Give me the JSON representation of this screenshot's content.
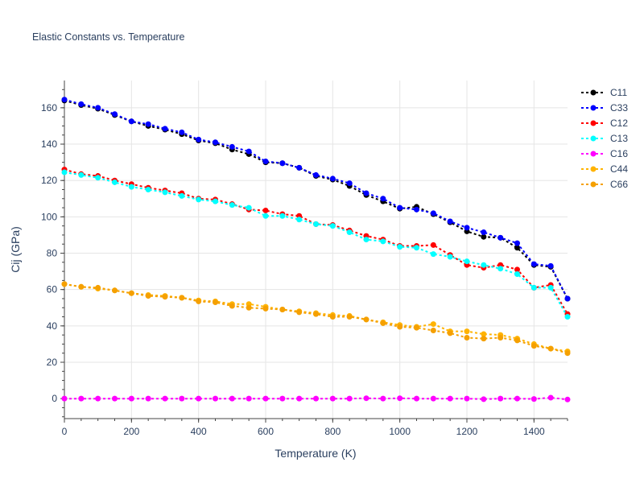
{
  "chart_data": {
    "type": "line",
    "title": "Elastic Constants vs. Temperature",
    "xlabel": "Temperature (K)",
    "ylabel": "Cij (GPa)",
    "xlim": [
      0,
      1500
    ],
    "ylim": [
      -11,
      175
    ],
    "xticks": [
      0,
      200,
      400,
      600,
      800,
      1000,
      1200,
      1400
    ],
    "yticks": [
      0,
      20,
      40,
      60,
      80,
      100,
      120,
      140,
      160
    ],
    "grid": true,
    "legend_position": "top-right",
    "x": [
      0,
      50,
      100,
      150,
      200,
      250,
      300,
      350,
      400,
      450,
      500,
      550,
      600,
      650,
      700,
      750,
      800,
      850,
      900,
      950,
      1000,
      1050,
      1100,
      1150,
      1200,
      1250,
      1300,
      1350,
      1400,
      1450,
      1500
    ],
    "series": [
      {
        "name": "C11",
        "color": "#000000",
        "values": [
          164,
          161.5,
          159.5,
          156,
          152.5,
          150,
          148,
          145.5,
          142,
          140.5,
          137,
          134.5,
          130,
          129.5,
          127,
          122.5,
          120.5,
          117,
          112,
          108.5,
          104.5,
          105.5,
          101.5,
          97,
          92,
          89,
          88.5,
          83,
          73.5,
          72.5,
          55
        ]
      },
      {
        "name": "C33",
        "color": "#0000ff",
        "values": [
          164.5,
          162,
          160,
          156.5,
          152.5,
          151,
          148.5,
          146.5,
          142.5,
          141,
          138.5,
          136,
          130.5,
          129.5,
          127,
          123,
          121,
          118.5,
          113,
          110,
          105,
          104,
          102,
          97.5,
          94,
          91.5,
          88.5,
          85.5,
          74,
          73,
          55
        ]
      },
      {
        "name": "C12",
        "color": "#ff0000",
        "values": [
          126,
          123.5,
          122.5,
          120,
          118,
          116,
          114.5,
          113,
          110,
          109.5,
          107,
          104,
          103.5,
          101.5,
          100.5,
          96,
          95.5,
          92.5,
          89.5,
          87.5,
          84,
          84,
          84.5,
          79,
          73.5,
          72,
          73.5,
          71,
          61,
          62.5,
          46.5
        ]
      },
      {
        "name": "C13",
        "color": "#00ffff",
        "values": [
          124.5,
          123,
          121.5,
          119,
          116.5,
          115,
          113.5,
          111.5,
          109.5,
          108.5,
          106.5,
          105,
          100.5,
          100.5,
          98.5,
          96,
          95,
          91.5,
          87.5,
          86.5,
          83.5,
          83,
          79.5,
          78,
          75.5,
          73.5,
          71.5,
          68.5,
          61,
          61,
          45
        ]
      },
      {
        "name": "C16",
        "color": "#ff00ff",
        "values": [
          0,
          0,
          0,
          0,
          0,
          0,
          0,
          0,
          0,
          0,
          0,
          0,
          0,
          0,
          0,
          0,
          0,
          0,
          0.2,
          0,
          0.2,
          0,
          0,
          0,
          0,
          -0.3,
          0,
          0,
          -0.2,
          0.5,
          -0.5
        ]
      },
      {
        "name": "C44",
        "color": "#ffb300",
        "values": [
          63,
          61.5,
          60.5,
          59.5,
          58,
          57,
          56.5,
          55.5,
          54,
          53.5,
          52,
          52,
          50.5,
          49,
          48,
          47,
          46,
          45.5,
          43.5,
          42,
          40.5,
          39.5,
          41,
          37,
          37,
          35.5,
          35,
          33,
          30,
          27.5,
          26
        ]
      },
      {
        "name": "C66",
        "color": "#f5a000",
        "values": [
          63,
          61.5,
          61,
          59.5,
          58,
          56.5,
          56,
          55.5,
          53.5,
          53,
          51,
          50,
          49.5,
          49,
          47.5,
          46.5,
          45,
          45,
          43.5,
          41.5,
          39.5,
          39,
          37.5,
          36,
          33.5,
          33,
          33.5,
          32,
          29,
          27.5,
          25
        ]
      }
    ]
  }
}
